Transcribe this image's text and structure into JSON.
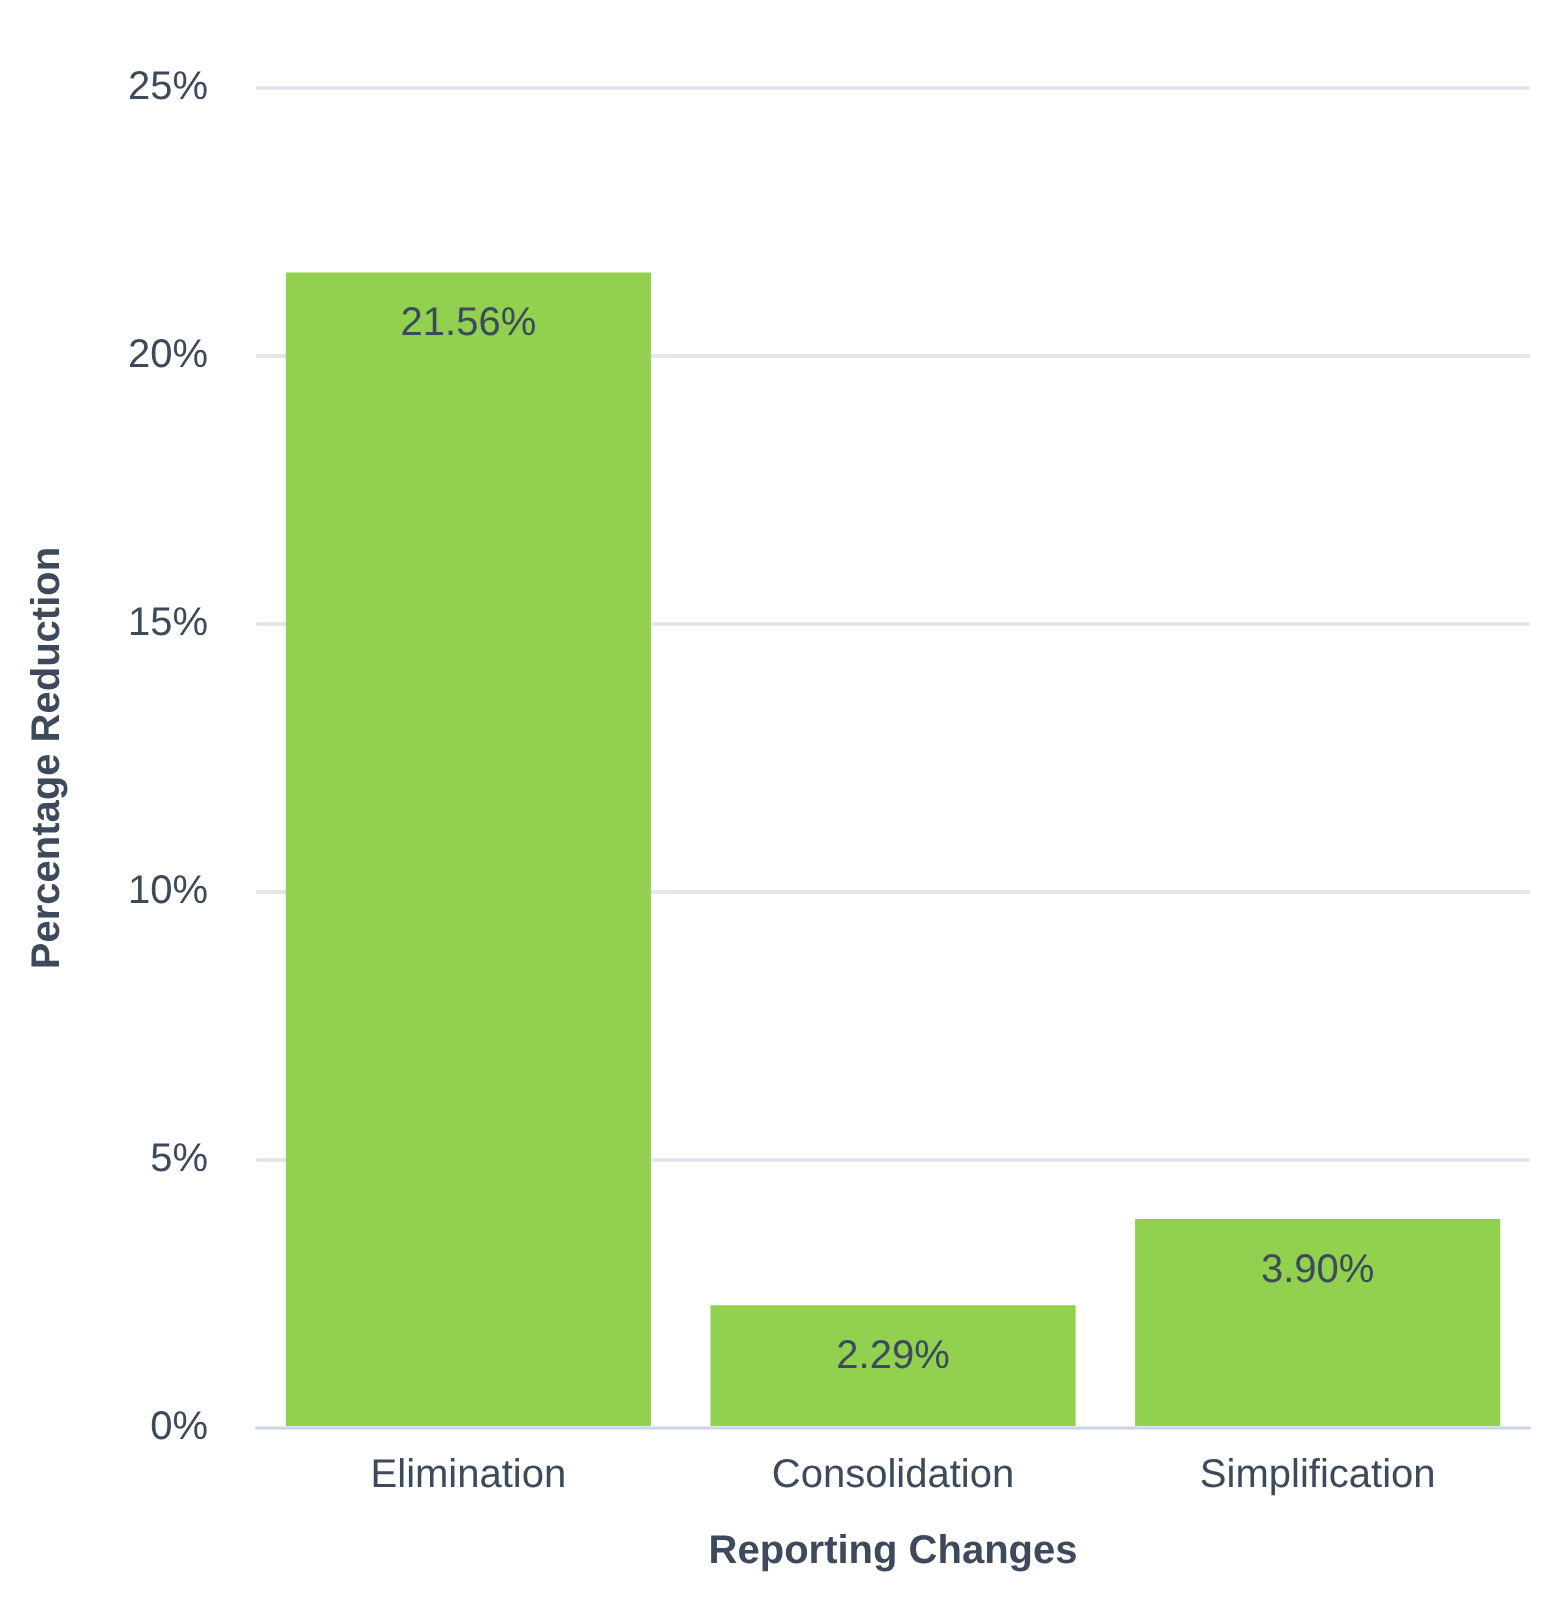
{
  "chart_data": {
    "type": "bar",
    "xlabel": "Reporting Changes",
    "ylabel": "Percentage Reduction",
    "categories": [
      "Elimination",
      "Consolidation",
      "Simplification"
    ],
    "values": [
      21.56,
      2.29,
      3.9
    ],
    "value_labels": [
      "21.56%",
      "2.29%",
      "3.90%"
    ],
    "color": "#92d050",
    "ylim": [
      0,
      25
    ],
    "yticks": [
      {
        "value": 0,
        "label": "0%"
      },
      {
        "value": 5,
        "label": "5%"
      },
      {
        "value": 10,
        "label": "10%"
      },
      {
        "value": 15,
        "label": "15%"
      },
      {
        "value": 20,
        "label": "20%"
      },
      {
        "value": 25,
        "label": "25%"
      }
    ],
    "grid": "y",
    "legend": false
  }
}
